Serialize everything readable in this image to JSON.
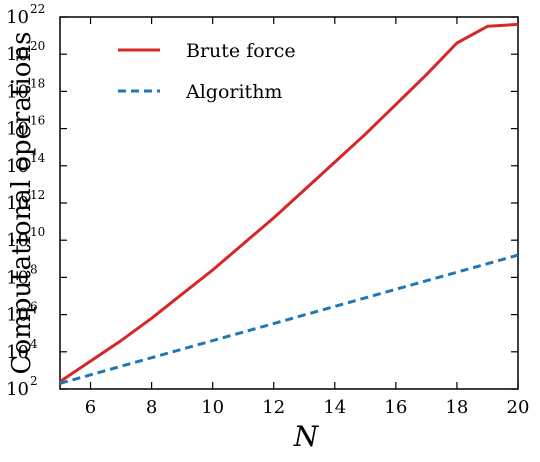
{
  "chart_data": {
    "type": "line",
    "xlabel": "N",
    "ylabel": "Computational operations",
    "xlim": [
      5,
      20
    ],
    "ylim_log10": [
      2,
      22
    ],
    "y_scale": "log",
    "x_ticks": [
      6,
      8,
      10,
      12,
      14,
      16,
      18,
      20
    ],
    "y_tick_exponents": [
      2,
      4,
      6,
      8,
      10,
      12,
      14,
      16,
      18,
      20,
      22
    ],
    "y_tick_base": "10",
    "legend_position": "top-left",
    "grid": false,
    "series": [
      {
        "name": "Brute force",
        "color": "#d62728",
        "style": "solid",
        "x": [
          5,
          6,
          7,
          8,
          9,
          10,
          11,
          12,
          13,
          14,
          15,
          16,
          17,
          18,
          19,
          20
        ],
        "y_log10": [
          2.4,
          3.5,
          4.6,
          5.8,
          7.1,
          8.4,
          9.8,
          11.2,
          12.7,
          14.2,
          15.7,
          17.3,
          18.9,
          20.6,
          21.5,
          21.6
        ]
      },
      {
        "name": "Algorithm",
        "color": "#1f77b4",
        "style": "dashed",
        "x": [
          5,
          20
        ],
        "y_log10": [
          2.3,
          9.2
        ]
      }
    ]
  }
}
